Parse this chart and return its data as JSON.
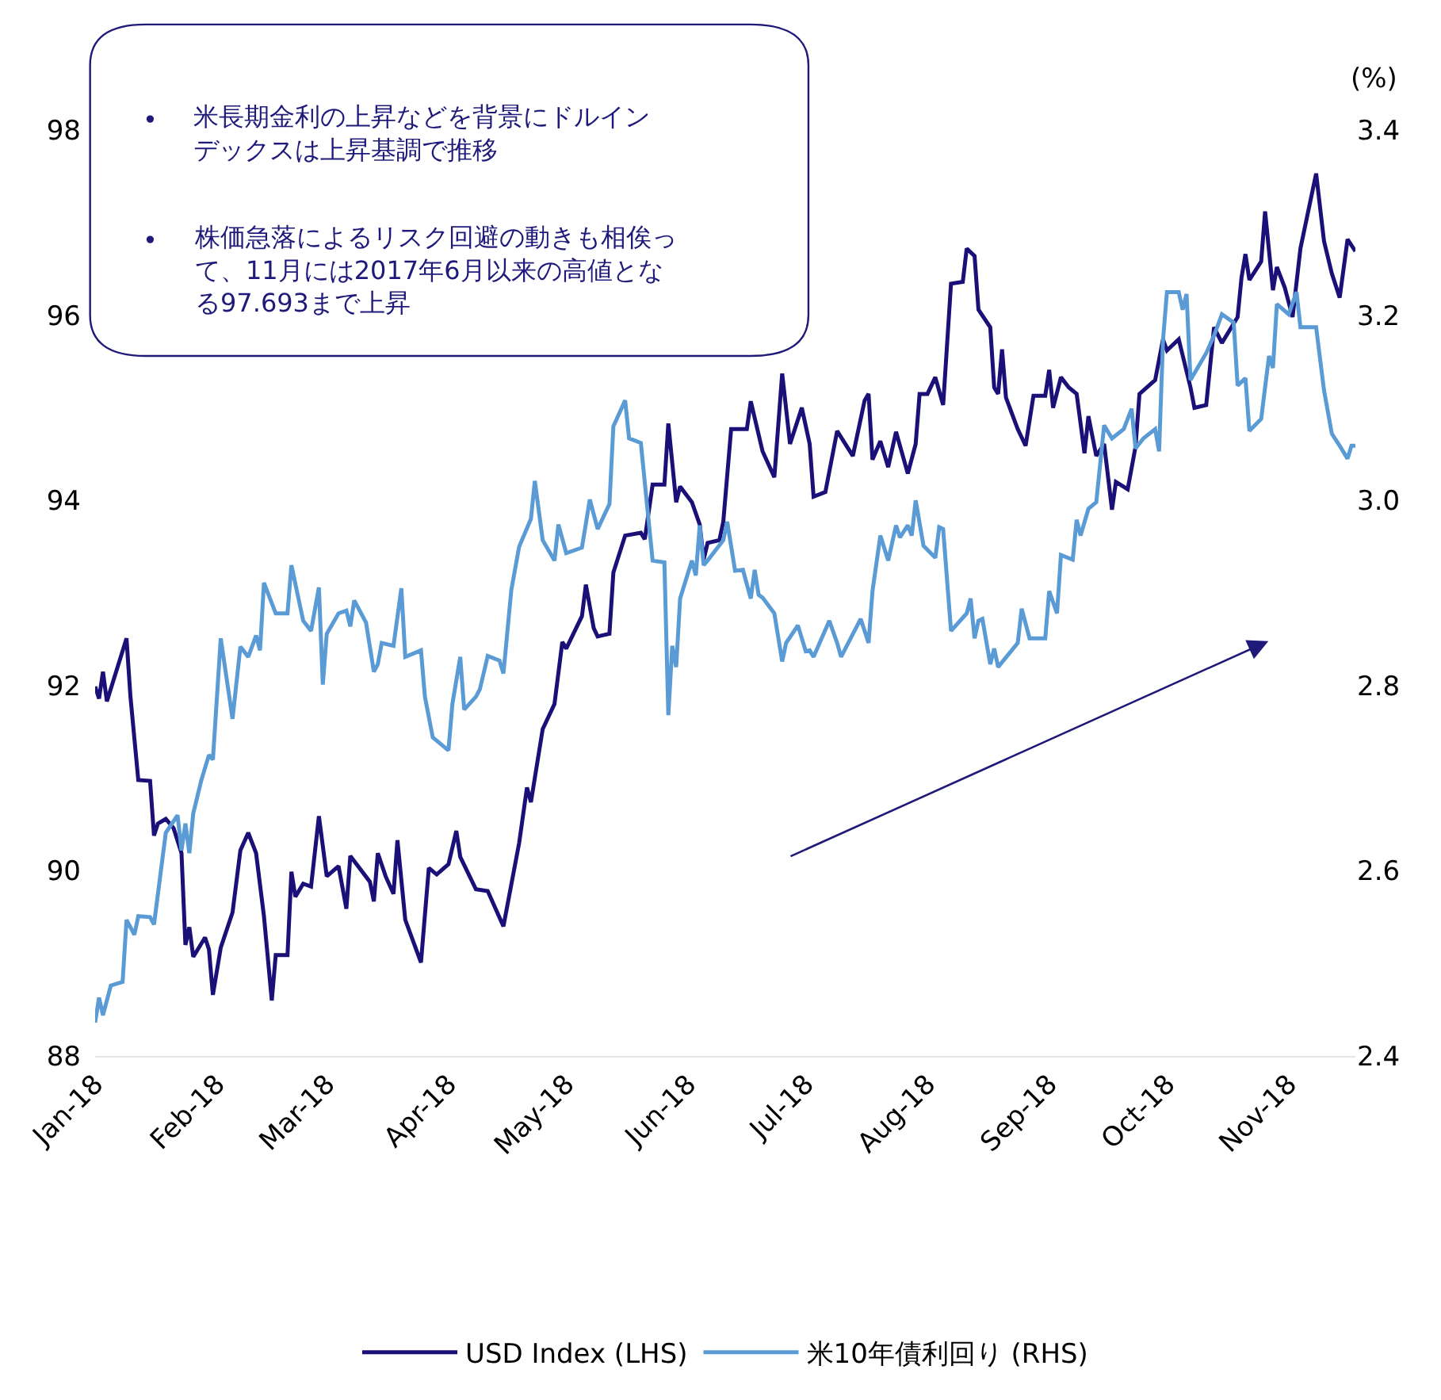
{
  "chart_data": {
    "type": "line",
    "y2label": "(%)",
    "annotations": [
      "•\t米長期金利の上昇などを背景にドルインデックスは上昇基調で推移",
      "•\t株価急落によるリスク回避の動きも相俟って、11月には2017年6月以来の高値となる97.693まで上昇"
    ],
    "xticks": [
      {
        "value": "2018-01-01",
        "label": "Jan-18"
      },
      {
        "value": "2018-02-01",
        "label": "Feb-18"
      },
      {
        "value": "2018-03-01",
        "label": "Mar-18"
      },
      {
        "value": "2018-04-01",
        "label": "Apr-18"
      },
      {
        "value": "2018-05-01",
        "label": "May-18"
      },
      {
        "value": "2018-06-01",
        "label": "Jun-18"
      },
      {
        "value": "2018-07-01",
        "label": "Jul-18"
      },
      {
        "value": "2018-08-01",
        "label": "Aug-18"
      },
      {
        "value": "2018-09-01",
        "label": "Sep-18"
      },
      {
        "value": "2018-10-01",
        "label": "Oct-18"
      },
      {
        "value": "2018-11-01",
        "label": "Nov-18"
      }
    ],
    "xlim": [
      "2018-01-01",
      "2018-11-18"
    ],
    "ylim": [
      88,
      98
    ],
    "yticks": [
      88,
      90,
      92,
      94,
      96,
      98
    ],
    "y2lim": [
      2.4,
      3.4
    ],
    "y2ticks": [
      2.4,
      2.6,
      2.8,
      {
        "value": 3.0,
        "label": "3.0"
      },
      3.2,
      3.4
    ],
    "legend": "bottom",
    "marker": "none",
    "line_style": "solid",
    "series": [
      {
        "name": "USD Index (LHS)",
        "color": "#1b0f78",
        "x": [
          "2018-01-01",
          "2018-01-02",
          "2018-01-03",
          "2018-01-04",
          "2018-01-09",
          "2018-01-10",
          "2018-01-12",
          "2018-01-15",
          "2018-01-16",
          "2018-01-17",
          "2018-01-19",
          "2018-01-21",
          "2018-01-23",
          "2018-01-24",
          "2018-01-25",
          "2018-01-26",
          "2018-01-29",
          "2018-01-30",
          "2018-01-31",
          "2018-02-02",
          "2018-02-05",
          "2018-02-07",
          "2018-02-09",
          "2018-02-11",
          "2018-02-13",
          "2018-02-15",
          "2018-02-16",
          "2018-02-19",
          "2018-02-20",
          "2018-02-21",
          "2018-02-23",
          "2018-02-25",
          "2018-02-27",
          "2018-03-01",
          "2018-03-04",
          "2018-03-06",
          "2018-03-07",
          "2018-03-12",
          "2018-03-13",
          "2018-03-14",
          "2018-03-16",
          "2018-03-18",
          "2018-03-19",
          "2018-03-21",
          "2018-03-25",
          "2018-03-27",
          "2018-03-29",
          "2018-04-01",
          "2018-04-03",
          "2018-04-04",
          "2018-04-08",
          "2018-04-11",
          "2018-04-15",
          "2018-04-19",
          "2018-04-21",
          "2018-04-22",
          "2018-04-25",
          "2018-04-28",
          "2018-04-30",
          "2018-05-01",
          "2018-05-05",
          "2018-05-06",
          "2018-05-08",
          "2018-05-09",
          "2018-05-12",
          "2018-05-13",
          "2018-05-16",
          "2018-05-20",
          "2018-05-21",
          "2018-05-23",
          "2018-05-26",
          "2018-05-27",
          "2018-05-29",
          "2018-05-30",
          "2018-06-02",
          "2018-06-04",
          "2018-06-05",
          "2018-06-06",
          "2018-06-09",
          "2018-06-10",
          "2018-06-12",
          "2018-06-16",
          "2018-06-17",
          "2018-06-20",
          "2018-06-23",
          "2018-06-25",
          "2018-06-27",
          "2018-06-30",
          "2018-07-02",
          "2018-07-03",
          "2018-07-06",
          "2018-07-09",
          "2018-07-13",
          "2018-07-16",
          "2018-07-17",
          "2018-07-18",
          "2018-07-20",
          "2018-07-22",
          "2018-07-24",
          "2018-07-27",
          "2018-07-29",
          "2018-07-30",
          "2018-08-01",
          "2018-08-03",
          "2018-08-05",
          "2018-08-07",
          "2018-08-10",
          "2018-08-11",
          "2018-08-13",
          "2018-08-14",
          "2018-08-17",
          "2018-08-18",
          "2018-08-19",
          "2018-08-20",
          "2018-08-21",
          "2018-08-24",
          "2018-08-26",
          "2018-08-28",
          "2018-08-31",
          "2018-09-01",
          "2018-09-02",
          "2018-09-04",
          "2018-09-06",
          "2018-09-08",
          "2018-09-10",
          "2018-09-11",
          "2018-09-13",
          "2018-09-15",
          "2018-09-17",
          "2018-09-18",
          "2018-09-21",
          "2018-09-23",
          "2018-09-24",
          "2018-09-28",
          "2018-09-30",
          "2018-10-01",
          "2018-10-04",
          "2018-10-07",
          "2018-10-08",
          "2018-10-11",
          "2018-10-13",
          "2018-10-15",
          "2018-10-19",
          "2018-10-20",
          "2018-10-21",
          "2018-10-22",
          "2018-10-25",
          "2018-10-26",
          "2018-10-28",
          "2018-10-29",
          "2018-10-31",
          "2018-11-02",
          "2018-11-04",
          "2018-11-08",
          "2018-11-10",
          "2018-11-12",
          "2018-11-14",
          "2018-11-16",
          "2018-11-18"
        ],
        "values": [
          91.99,
          91.86,
          92.15,
          91.83,
          92.51,
          91.88,
          90.98,
          90.97,
          90.38,
          90.51,
          90.56,
          90.46,
          90.19,
          89.2,
          89.39,
          89.07,
          89.28,
          89.15,
          88.66,
          89.17,
          89.55,
          90.22,
          90.41,
          90.19,
          89.51,
          88.6,
          89.09,
          89.09,
          89.99,
          89.72,
          89.86,
          89.83,
          90.59,
          89.94,
          90.05,
          89.59,
          90.16,
          89.88,
          89.67,
          90.19,
          89.94,
          89.75,
          90.33,
          89.47,
          89.01,
          90.03,
          89.96,
          90.07,
          90.43,
          90.15,
          89.8,
          89.78,
          89.4,
          90.3,
          90.9,
          90.74,
          91.53,
          91.8,
          92.47,
          92.4,
          92.75,
          93.09,
          92.62,
          92.53,
          92.56,
          93.22,
          93.62,
          93.65,
          93.58,
          94.17,
          94.17,
          94.83,
          93.98,
          94.15,
          93.98,
          93.74,
          93.36,
          93.54,
          93.57,
          93.77,
          94.77,
          94.77,
          95.07,
          94.53,
          94.25,
          95.37,
          94.61,
          95.0,
          94.61,
          94.04,
          94.09,
          94.75,
          94.48,
          95.08,
          95.15,
          94.44,
          94.64,
          94.36,
          94.74,
          94.29,
          94.61,
          95.15,
          95.15,
          95.33,
          95.03,
          96.34,
          96.36,
          96.72,
          96.64,
          96.06,
          95.87,
          95.22,
          95.15,
          95.63,
          95.11,
          94.77,
          94.59,
          95.13,
          95.13,
          95.41,
          95.0,
          95.33,
          95.22,
          95.15,
          94.51,
          94.91,
          94.48,
          94.61,
          93.9,
          94.2,
          94.12,
          94.58,
          95.15,
          95.3,
          95.74,
          95.62,
          95.74,
          95.22,
          95.0,
          95.03,
          95.87,
          95.7,
          95.98,
          96.41,
          96.66,
          96.38,
          96.58,
          97.12,
          96.27,
          96.52,
          96.3,
          95.98,
          96.72,
          97.53,
          96.8,
          96.45,
          96.19,
          96.82,
          96.69
        ]
      },
      {
        "name": "米10年債利回り (RHS)",
        "color": "#5b9bd5",
        "axis": "y2",
        "x": [
          "2018-01-01",
          "2018-01-02",
          "2018-01-03",
          "2018-01-05",
          "2018-01-08",
          "2018-01-09",
          "2018-01-11",
          "2018-01-12",
          "2018-01-15",
          "2018-01-16",
          "2018-01-19",
          "2018-01-22",
          "2018-01-23",
          "2018-01-24",
          "2018-01-25",
          "2018-01-26",
          "2018-01-28",
          "2018-01-30",
          "2018-01-31",
          "2018-02-02",
          "2018-02-05",
          "2018-02-07",
          "2018-02-09",
          "2018-02-11",
          "2018-02-12",
          "2018-02-13",
          "2018-02-16",
          "2018-02-19",
          "2018-02-20",
          "2018-02-23",
          "2018-02-25",
          "2018-02-27",
          "2018-02-28",
          "2018-03-01",
          "2018-03-04",
          "2018-03-06",
          "2018-03-07",
          "2018-03-08",
          "2018-03-11",
          "2018-03-13",
          "2018-03-14",
          "2018-03-15",
          "2018-03-18",
          "2018-03-20",
          "2018-03-21",
          "2018-03-25",
          "2018-03-26",
          "2018-03-28",
          "2018-04-01",
          "2018-04-02",
          "2018-04-04",
          "2018-04-05",
          "2018-04-08",
          "2018-04-09",
          "2018-04-11",
          "2018-04-14",
          "2018-04-15",
          "2018-04-17",
          "2018-04-19",
          "2018-04-22",
          "2018-04-23",
          "2018-04-25",
          "2018-04-28",
          "2018-04-29",
          "2018-05-01",
          "2018-05-05",
          "2018-05-07",
          "2018-05-09",
          "2018-05-12",
          "2018-05-13",
          "2018-05-16",
          "2018-05-17",
          "2018-05-20",
          "2018-05-23",
          "2018-05-26",
          "2018-05-27",
          "2018-05-28",
          "2018-05-29",
          "2018-05-30",
          "2018-06-02",
          "2018-06-03",
          "2018-06-04",
          "2018-06-05",
          "2018-06-06",
          "2018-06-10",
          "2018-06-11",
          "2018-06-13",
          "2018-06-15",
          "2018-06-17",
          "2018-06-18",
          "2018-06-19",
          "2018-06-20",
          "2018-06-23",
          "2018-06-25",
          "2018-06-26",
          "2018-06-29",
          "2018-07-01",
          "2018-07-02",
          "2018-07-03",
          "2018-07-07",
          "2018-07-09",
          "2018-07-10",
          "2018-07-15",
          "2018-07-17",
          "2018-07-18",
          "2018-07-20",
          "2018-07-22",
          "2018-07-24",
          "2018-07-25",
          "2018-07-27",
          "2018-07-28",
          "2018-07-29",
          "2018-07-31",
          "2018-08-03",
          "2018-08-04",
          "2018-08-05",
          "2018-08-07",
          "2018-08-11",
          "2018-08-12",
          "2018-08-13",
          "2018-08-14",
          "2018-08-15",
          "2018-08-17",
          "2018-08-18",
          "2018-08-19",
          "2018-08-24",
          "2018-08-25",
          "2018-08-27",
          "2018-08-31",
          "2018-09-01",
          "2018-09-03",
          "2018-09-04",
          "2018-09-07",
          "2018-09-08",
          "2018-09-09",
          "2018-09-11",
          "2018-09-13",
          "2018-09-15",
          "2018-09-17",
          "2018-09-20",
          "2018-09-22",
          "2018-09-23",
          "2018-09-25",
          "2018-09-28",
          "2018-09-29",
          "2018-09-30",
          "2018-10-01",
          "2018-10-04",
          "2018-10-05",
          "2018-10-06",
          "2018-10-07",
          "2018-10-11",
          "2018-10-13",
          "2018-10-15",
          "2018-10-18",
          "2018-10-19",
          "2018-10-21",
          "2018-10-22",
          "2018-10-25",
          "2018-10-27",
          "2018-10-28",
          "2018-10-29",
          "2018-11-01",
          "2018-11-03",
          "2018-11-04",
          "2018-11-08",
          "2018-11-10",
          "2018-11-12",
          "2018-11-14",
          "2018-11-16",
          "2018-11-17",
          "2018-11-18"
        ],
        "values": [
          2.436,
          2.463,
          2.444,
          2.476,
          2.48,
          2.547,
          2.531,
          2.551,
          2.55,
          2.542,
          2.641,
          2.66,
          2.622,
          2.651,
          2.619,
          2.662,
          2.697,
          2.725,
          2.72,
          2.851,
          2.764,
          2.842,
          2.831,
          2.854,
          2.838,
          2.911,
          2.878,
          2.878,
          2.93,
          2.87,
          2.859,
          2.906,
          2.801,
          2.856,
          2.878,
          2.881,
          2.864,
          2.892,
          2.868,
          2.815,
          2.823,
          2.846,
          2.843,
          2.905,
          2.831,
          2.838,
          2.788,
          2.744,
          2.73,
          2.78,
          2.831,
          2.774,
          2.788,
          2.796,
          2.832,
          2.827,
          2.813,
          2.903,
          2.95,
          2.98,
          3.021,
          2.957,
          2.935,
          2.974,
          2.943,
          2.949,
          3.001,
          2.969,
          2.996,
          3.08,
          3.108,
          3.067,
          3.062,
          2.935,
          2.933,
          2.768,
          2.843,
          2.82,
          2.894,
          2.935,
          2.919,
          2.973,
          2.93,
          2.935,
          2.957,
          2.977,
          2.924,
          2.925,
          2.894,
          2.925,
          2.898,
          2.895,
          2.878,
          2.826,
          2.846,
          2.865,
          2.837,
          2.838,
          2.831,
          2.87,
          2.846,
          2.831,
          2.872,
          2.846,
          2.902,
          2.962,
          2.935,
          2.973,
          2.96,
          2.973,
          2.962,
          3.0,
          2.951,
          2.938,
          2.971,
          2.969,
          2.859,
          2.878,
          2.894,
          2.851,
          2.87,
          2.872,
          2.823,
          2.84,
          2.82,
          2.846,
          2.883,
          2.851,
          2.851,
          2.902,
          2.878,
          2.941,
          2.936,
          2.979,
          2.962,
          2.991,
          2.998,
          3.081,
          3.067,
          3.077,
          3.099,
          3.056,
          3.067,
          3.077,
          3.053,
          3.173,
          3.225,
          3.225,
          3.206,
          3.223,
          3.13,
          3.159,
          3.178,
          3.201,
          3.192,
          3.124,
          3.132,
          3.075,
          3.088,
          3.156,
          3.143,
          3.212,
          3.201,
          3.225,
          3.187,
          3.187,
          3.119,
          3.072,
          3.059,
          3.045,
          3.059,
          3.059
        ]
      }
    ]
  }
}
